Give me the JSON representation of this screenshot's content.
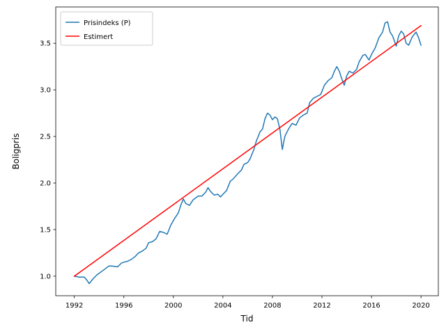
{
  "chart_data": {
    "type": "line",
    "title": "",
    "xlabel": "Tid",
    "ylabel": "Boligpris",
    "xlim": [
      1990.5,
      2021.4
    ],
    "ylim": [
      0.79,
      3.89
    ],
    "xticks": [
      1992,
      1996,
      2000,
      2004,
      2008,
      2012,
      2016,
      2020
    ],
    "yticks": [
      1.0,
      1.5,
      2.0,
      2.5,
      3.0,
      3.5
    ],
    "ytick_labels": [
      "1.0",
      "1.5",
      "2.0",
      "2.5",
      "3.0",
      "3.5"
    ],
    "grid": false,
    "legend_position": "top-left",
    "series": [
      {
        "name": "Prisindeks (P)",
        "color": "#1f77b4",
        "style": "solid",
        "x": [
          1992.0,
          1992.4,
          1992.8,
          1993.0,
          1993.2,
          1993.5,
          1993.8,
          1994.2,
          1994.5,
          1994.8,
          1995.0,
          1995.5,
          1995.8,
          1996.0,
          1996.3,
          1996.6,
          1996.9,
          1997.2,
          1997.5,
          1997.8,
          1998.0,
          1998.3,
          1998.6,
          1998.9,
          1999.2,
          1999.5,
          1999.8,
          2000.1,
          2000.4,
          2000.6,
          2000.8,
          2001.0,
          2001.3,
          2001.6,
          2002.0,
          2002.3,
          2002.6,
          2002.8,
          2003.0,
          2003.3,
          2003.6,
          2003.8,
          2004.0,
          2004.3,
          2004.6,
          2004.8,
          2005.0,
          2005.2,
          2005.5,
          2005.7,
          2006.0,
          2006.2,
          2006.5,
          2006.7,
          2007.0,
          2007.2,
          2007.4,
          2007.6,
          2007.8,
          2008.0,
          2008.2,
          2008.4,
          2008.6,
          2008.8,
          2009.0,
          2009.3,
          2009.6,
          2009.9,
          2010.2,
          2010.5,
          2010.8,
          2011.0,
          2011.3,
          2011.6,
          2011.9,
          2012.2,
          2012.5,
          2012.8,
          2013.0,
          2013.2,
          2013.4,
          2013.6,
          2013.8,
          2014.0,
          2014.2,
          2014.5,
          2014.8,
          2015.0,
          2015.3,
          2015.5,
          2015.8,
          2016.0,
          2016.3,
          2016.6,
          2016.9,
          2017.1,
          2017.3,
          2017.5,
          2017.7,
          2018.0,
          2018.2,
          2018.4,
          2018.6,
          2018.8,
          2019.0,
          2019.3,
          2019.6,
          2019.8,
          2020.0
        ],
        "y": [
          1.0,
          0.99,
          0.99,
          0.96,
          0.92,
          0.97,
          1.01,
          1.05,
          1.08,
          1.11,
          1.11,
          1.1,
          1.14,
          1.15,
          1.16,
          1.18,
          1.21,
          1.25,
          1.27,
          1.3,
          1.36,
          1.37,
          1.4,
          1.48,
          1.47,
          1.45,
          1.55,
          1.62,
          1.68,
          1.76,
          1.83,
          1.78,
          1.76,
          1.82,
          1.86,
          1.86,
          1.9,
          1.95,
          1.91,
          1.87,
          1.88,
          1.85,
          1.88,
          1.92,
          2.02,
          2.04,
          2.07,
          2.1,
          2.14,
          2.2,
          2.22,
          2.26,
          2.36,
          2.45,
          2.55,
          2.58,
          2.69,
          2.75,
          2.73,
          2.68,
          2.71,
          2.69,
          2.58,
          2.36,
          2.5,
          2.58,
          2.64,
          2.62,
          2.7,
          2.73,
          2.75,
          2.86,
          2.91,
          2.93,
          2.95,
          3.05,
          3.1,
          3.13,
          3.2,
          3.25,
          3.2,
          3.12,
          3.05,
          3.15,
          3.2,
          3.18,
          3.22,
          3.3,
          3.37,
          3.38,
          3.32,
          3.38,
          3.45,
          3.56,
          3.62,
          3.72,
          3.73,
          3.62,
          3.58,
          3.47,
          3.58,
          3.63,
          3.6,
          3.5,
          3.48,
          3.57,
          3.62,
          3.56,
          3.48
        ]
      },
      {
        "name": "Estimert",
        "color": "#ff0000",
        "style": "solid",
        "x": [
          1992.0,
          2020.0
        ],
        "y": [
          1.0,
          3.69
        ]
      }
    ]
  }
}
